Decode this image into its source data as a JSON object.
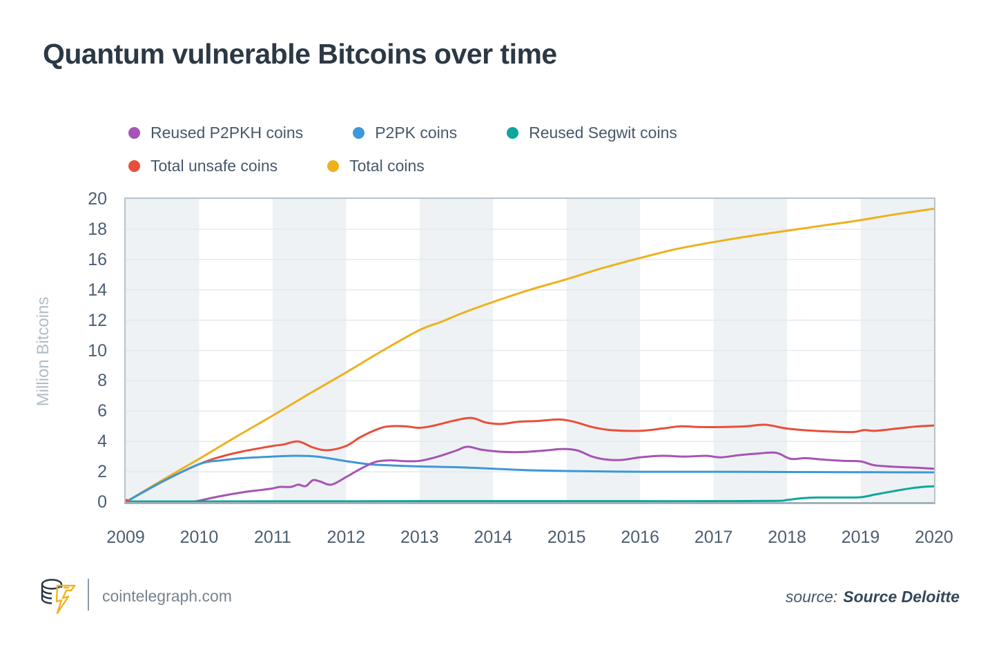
{
  "title": "Quantum vulnerable Bitcoins over time",
  "legend": {
    "items": [
      {
        "label": "Reused P2PKH coins",
        "color": "#a653b4"
      },
      {
        "label": "P2PK coins",
        "color": "#3d97d9"
      },
      {
        "label": "Reused Segwit coins",
        "color": "#0ba79b"
      },
      {
        "label": "Total unsafe coins",
        "color": "#e94e3a"
      },
      {
        "label": "Total coins",
        "color": "#eeb01c"
      }
    ]
  },
  "chart_data": {
    "type": "line",
    "title": "Quantum vulnerable Bitcoins over time",
    "xlabel": "",
    "ylabel": "Million Bitcoins",
    "xlim": [
      2009,
      2020
    ],
    "ylim": [
      0,
      20
    ],
    "x_ticks": [
      "2009",
      "2010",
      "2011",
      "2012",
      "2013",
      "2014",
      "2015",
      "2016",
      "2017",
      "2018",
      "2019",
      "2020"
    ],
    "y_ticks": [
      "0",
      "2",
      "4",
      "6",
      "8",
      "10",
      "12",
      "14",
      "16",
      "18",
      "20"
    ],
    "grid": "horizontal",
    "legend_position": "top",
    "colors": {
      "band": "#eef2f4",
      "grid": "#e4e9ec",
      "border": "#b7c2c9"
    },
    "series": [
      {
        "name": "Total coins",
        "color": "#eeb01c",
        "points": [
          [
            2009,
            0
          ],
          [
            2009.5,
            1.45
          ],
          [
            2010,
            2.85
          ],
          [
            2010.5,
            4.3
          ],
          [
            2011,
            5.7
          ],
          [
            2011.5,
            7.15
          ],
          [
            2012,
            8.55
          ],
          [
            2012.5,
            10.0
          ],
          [
            2013,
            11.35
          ],
          [
            2013.3,
            11.9
          ],
          [
            2013.6,
            12.5
          ],
          [
            2014,
            13.2
          ],
          [
            2014.5,
            14.0
          ],
          [
            2015,
            14.7
          ],
          [
            2015.5,
            15.45
          ],
          [
            2016,
            16.1
          ],
          [
            2016.5,
            16.7
          ],
          [
            2017,
            17.15
          ],
          [
            2017.5,
            17.55
          ],
          [
            2018,
            17.9
          ],
          [
            2018.5,
            18.25
          ],
          [
            2019,
            18.6
          ],
          [
            2019.5,
            19.0
          ],
          [
            2020,
            19.35
          ]
        ]
      },
      {
        "name": "Total unsafe coins",
        "color": "#e94e3a",
        "points": [
          [
            2009,
            0
          ],
          [
            2009.5,
            1.35
          ],
          [
            2010,
            2.5
          ],
          [
            2010.3,
            3.0
          ],
          [
            2010.6,
            3.35
          ],
          [
            2011,
            3.7
          ],
          [
            2011.15,
            3.8
          ],
          [
            2011.35,
            4.0
          ],
          [
            2011.55,
            3.6
          ],
          [
            2011.75,
            3.42
          ],
          [
            2012,
            3.7
          ],
          [
            2012.2,
            4.3
          ],
          [
            2012.45,
            4.85
          ],
          [
            2012.6,
            5.0
          ],
          [
            2012.8,
            5.0
          ],
          [
            2013,
            4.9
          ],
          [
            2013.2,
            5.05
          ],
          [
            2013.45,
            5.35
          ],
          [
            2013.7,
            5.55
          ],
          [
            2013.9,
            5.25
          ],
          [
            2014.1,
            5.15
          ],
          [
            2014.35,
            5.3
          ],
          [
            2014.6,
            5.35
          ],
          [
            2014.9,
            5.45
          ],
          [
            2015.1,
            5.3
          ],
          [
            2015.35,
            4.95
          ],
          [
            2015.6,
            4.75
          ],
          [
            2016,
            4.7
          ],
          [
            2016.3,
            4.85
          ],
          [
            2016.55,
            5.0
          ],
          [
            2016.8,
            4.95
          ],
          [
            2017.1,
            4.95
          ],
          [
            2017.45,
            5.0
          ],
          [
            2017.7,
            5.1
          ],
          [
            2018,
            4.85
          ],
          [
            2018.3,
            4.72
          ],
          [
            2018.6,
            4.65
          ],
          [
            2018.9,
            4.62
          ],
          [
            2019.05,
            4.75
          ],
          [
            2019.2,
            4.7
          ],
          [
            2019.5,
            4.85
          ],
          [
            2019.75,
            4.98
          ],
          [
            2020,
            5.05
          ]
        ]
      },
      {
        "name": "P2PK coins",
        "color": "#3d97d9",
        "points": [
          [
            2009,
            0
          ],
          [
            2009.5,
            1.35
          ],
          [
            2010,
            2.5
          ],
          [
            2010.3,
            2.75
          ],
          [
            2010.6,
            2.9
          ],
          [
            2011,
            3.0
          ],
          [
            2011.3,
            3.05
          ],
          [
            2011.6,
            3.0
          ],
          [
            2012,
            2.7
          ],
          [
            2012.3,
            2.5
          ],
          [
            2012.6,
            2.42
          ],
          [
            2013,
            2.35
          ],
          [
            2013.5,
            2.3
          ],
          [
            2014,
            2.2
          ],
          [
            2014.5,
            2.1
          ],
          [
            2015,
            2.05
          ],
          [
            2015.5,
            2.02
          ],
          [
            2016,
            2.0
          ],
          [
            2017,
            2.0
          ],
          [
            2018,
            1.98
          ],
          [
            2019,
            1.97
          ],
          [
            2020,
            1.96
          ]
        ]
      },
      {
        "name": "Reused P2PKH coins",
        "color": "#a653b4",
        "points": [
          [
            2009.93,
            0.02
          ],
          [
            2010.1,
            0.2
          ],
          [
            2010.3,
            0.4
          ],
          [
            2010.6,
            0.65
          ],
          [
            2010.85,
            0.8
          ],
          [
            2011,
            0.9
          ],
          [
            2011.1,
            1.0
          ],
          [
            2011.25,
            1.0
          ],
          [
            2011.35,
            1.15
          ],
          [
            2011.45,
            1.05
          ],
          [
            2011.55,
            1.45
          ],
          [
            2011.65,
            1.35
          ],
          [
            2011.8,
            1.15
          ],
          [
            2012,
            1.65
          ],
          [
            2012.2,
            2.2
          ],
          [
            2012.4,
            2.65
          ],
          [
            2012.6,
            2.75
          ],
          [
            2012.8,
            2.7
          ],
          [
            2013,
            2.72
          ],
          [
            2013.25,
            3.0
          ],
          [
            2013.5,
            3.4
          ],
          [
            2013.65,
            3.65
          ],
          [
            2013.85,
            3.45
          ],
          [
            2014.1,
            3.32
          ],
          [
            2014.4,
            3.3
          ],
          [
            2014.7,
            3.4
          ],
          [
            2014.95,
            3.5
          ],
          [
            2015.15,
            3.4
          ],
          [
            2015.35,
            3.0
          ],
          [
            2015.55,
            2.8
          ],
          [
            2015.75,
            2.78
          ],
          [
            2016,
            2.95
          ],
          [
            2016.3,
            3.05
          ],
          [
            2016.6,
            3.0
          ],
          [
            2016.9,
            3.05
          ],
          [
            2017.1,
            2.95
          ],
          [
            2017.35,
            3.1
          ],
          [
            2017.6,
            3.2
          ],
          [
            2017.85,
            3.25
          ],
          [
            2018.05,
            2.85
          ],
          [
            2018.25,
            2.9
          ],
          [
            2018.5,
            2.8
          ],
          [
            2018.75,
            2.72
          ],
          [
            2019,
            2.68
          ],
          [
            2019.2,
            2.42
          ],
          [
            2019.5,
            2.32
          ],
          [
            2019.75,
            2.27
          ],
          [
            2020,
            2.2
          ]
        ]
      },
      {
        "name": "Reused Segwit coins",
        "color": "#0ba79b",
        "points": [
          [
            2009,
            0.04
          ],
          [
            2010,
            0.04
          ],
          [
            2011,
            0.05
          ],
          [
            2012,
            0.05
          ],
          [
            2013,
            0.06
          ],
          [
            2014,
            0.06
          ],
          [
            2015,
            0.06
          ],
          [
            2016,
            0.06
          ],
          [
            2017,
            0.06
          ],
          [
            2017.85,
            0.08
          ],
          [
            2018,
            0.14
          ],
          [
            2018.2,
            0.25
          ],
          [
            2018.4,
            0.3
          ],
          [
            2018.7,
            0.3
          ],
          [
            2019,
            0.32
          ],
          [
            2019.2,
            0.5
          ],
          [
            2019.45,
            0.72
          ],
          [
            2019.7,
            0.92
          ],
          [
            2019.9,
            1.02
          ],
          [
            2020,
            1.04
          ]
        ]
      }
    ]
  },
  "footer": {
    "site": "cointelegraph.com",
    "source_label": "source:",
    "source_value": "Source Deloitte"
  }
}
